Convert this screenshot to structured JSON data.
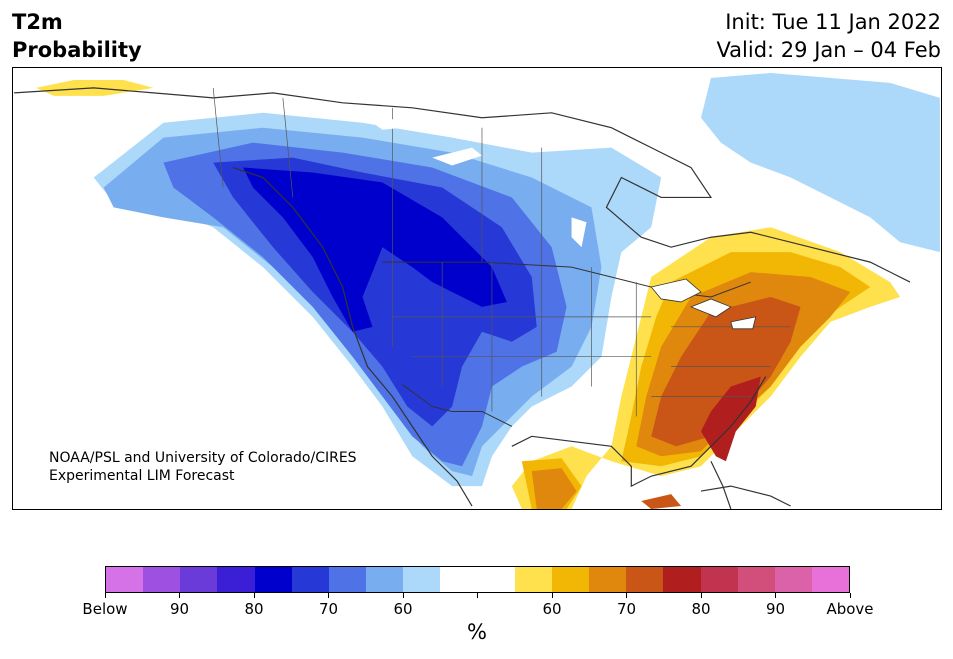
{
  "title": {
    "variable": "T2m",
    "product": "Probability",
    "init": "Init: Tue 11 Jan 2022",
    "valid": "Valid: 29 Jan – 04 Feb"
  },
  "credit": {
    "line1": "NOAA/PSL and University of Colorado/CIRES",
    "line2": "Experimental LIM Forecast"
  },
  "colorbar": {
    "unit": "%",
    "colors": [
      "#d672e8",
      "#9e50e0",
      "#6b3bd9",
      "#3b1fd6",
      "#0000cc",
      "#2638d6",
      "#4f73e6",
      "#78aef0",
      "#acd8fa",
      "#ffffff",
      "#ffffff",
      "#ffe14d",
      "#f2b705",
      "#e0870d",
      "#c95516",
      "#b01e1e",
      "#c2334f",
      "#d14f7a",
      "#db62a8",
      "#e870d9"
    ],
    "tick_labels": [
      "Below",
      "90",
      "80",
      "70",
      "60",
      "",
      "60",
      "70",
      "80",
      "90",
      "Above"
    ]
  },
  "map": {
    "regions": [
      {
        "name": "cold-60",
        "color": "#acd8fa"
      },
      {
        "name": "cold-70",
        "color": "#78aef0"
      },
      {
        "name": "cold-80",
        "color": "#4f73e6"
      },
      {
        "name": "cold-90",
        "color": "#2638d6"
      },
      {
        "name": "cold-core",
        "color": "#0000cc"
      },
      {
        "name": "warm-60",
        "color": "#ffe14d"
      },
      {
        "name": "warm-70",
        "color": "#f2b705"
      },
      {
        "name": "warm-80",
        "color": "#e0870d"
      },
      {
        "name": "warm-90",
        "color": "#c95516"
      },
      {
        "name": "warm-core",
        "color": "#b01e1e"
      }
    ]
  }
}
